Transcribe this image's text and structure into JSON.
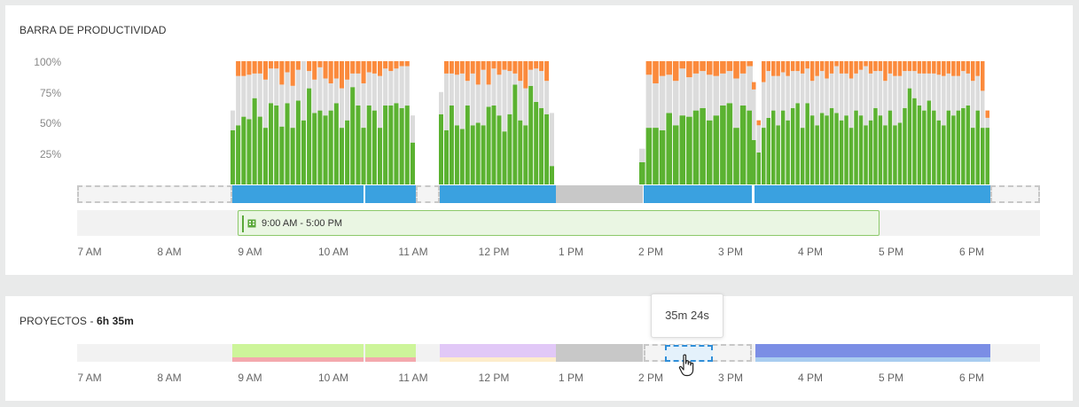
{
  "productivity": {
    "title": "BARRA DE PRODUCTIVIDAD",
    "y_ticks": [
      "100%",
      "75%",
      "50%",
      "25%"
    ],
    "schedule_label": "9:00 AM - 5:00 PM",
    "schedule_icon": "building-icon",
    "colors": {
      "productive": "#5bb231",
      "neutral": "#dcdcdc",
      "unproductive": "#fb8a3c",
      "active": "#3aa1e0",
      "idle": "#c8c8c8"
    }
  },
  "chart_data": {
    "type": "bar",
    "title": "BARRA DE PRODUCTIVIDAD",
    "y_ticks": [
      "100%",
      "75%",
      "50%",
      "25%"
    ],
    "ylim": [
      0,
      100
    ],
    "series_names": [
      "productive",
      "neutral",
      "unproductive"
    ],
    "blocks": [
      {
        "start": "8:56 AM",
        "end": "11:02 AM",
        "bars": [
          [
            44,
            16,
            0
          ],
          [
            48,
            40,
            12
          ],
          [
            55,
            33,
            12
          ],
          [
            53,
            36,
            11
          ],
          [
            70,
            20,
            10
          ],
          [
            55,
            35,
            10
          ],
          [
            46,
            39,
            15
          ],
          [
            66,
            28,
            6
          ],
          [
            64,
            30,
            6
          ],
          [
            47,
            34,
            19
          ],
          [
            66,
            25,
            9
          ],
          [
            46,
            34,
            20
          ],
          [
            68,
            25,
            7
          ],
          [
            52,
            48,
            0
          ],
          [
            78,
            14,
            8
          ],
          [
            58,
            27,
            15
          ],
          [
            60,
            35,
            5
          ],
          [
            56,
            30,
            14
          ],
          [
            60,
            22,
            18
          ],
          [
            66,
            20,
            14
          ],
          [
            46,
            32,
            22
          ],
          [
            52,
            33,
            15
          ],
          [
            79,
            11,
            10
          ],
          [
            64,
            26,
            10
          ],
          [
            46,
            36,
            18
          ],
          [
            64,
            27,
            9
          ],
          [
            60,
            30,
            10
          ],
          [
            46,
            42,
            12
          ],
          [
            64,
            30,
            6
          ],
          [
            64,
            28,
            8
          ],
          [
            66,
            28,
            6
          ],
          [
            62,
            34,
            4
          ],
          [
            64,
            32,
            4
          ],
          [
            34,
            22,
            0
          ]
        ]
      },
      {
        "start": "11:22 AM",
        "end": "12:48 PM",
        "bars": [
          [
            57,
            18,
            0
          ],
          [
            44,
            46,
            10
          ],
          [
            64,
            26,
            10
          ],
          [
            48,
            41,
            11
          ],
          [
            45,
            45,
            10
          ],
          [
            64,
            20,
            16
          ],
          [
            48,
            42,
            10
          ],
          [
            50,
            31,
            19
          ],
          [
            48,
            45,
            7
          ],
          [
            63,
            18,
            19
          ],
          [
            64,
            30,
            6
          ],
          [
            56,
            33,
            11
          ],
          [
            43,
            50,
            7
          ],
          [
            57,
            35,
            8
          ],
          [
            81,
            9,
            10
          ],
          [
            52,
            32,
            16
          ],
          [
            48,
            30,
            22
          ],
          [
            80,
            13,
            7
          ],
          [
            67,
            27,
            6
          ],
          [
            62,
            30,
            8
          ],
          [
            57,
            27,
            16
          ],
          [
            15,
            43,
            0
          ]
        ]
      },
      {
        "start": "1:52 PM",
        "end": "2:56 PM",
        "bars": [
          [
            18,
            11,
            0
          ],
          [
            46,
            43,
            11
          ],
          [
            46,
            36,
            18
          ],
          [
            44,
            44,
            12
          ],
          [
            58,
            31,
            11
          ],
          [
            48,
            36,
            16
          ],
          [
            56,
            38,
            6
          ],
          [
            55,
            32,
            13
          ],
          [
            60,
            30,
            10
          ],
          [
            62,
            30,
            8
          ],
          [
            52,
            37,
            11
          ],
          [
            56,
            32,
            12
          ],
          [
            64,
            26,
            10
          ],
          [
            66,
            26,
            8
          ],
          [
            46,
            40,
            14
          ],
          [
            64,
            26,
            10
          ],
          [
            60,
            36,
            4
          ]
        ]
      },
      {
        "start": "3:15 PM",
        "end": "6:12 PM",
        "bars": [
          [
            36,
            41,
            6
          ],
          [
            26,
            22,
            4
          ],
          [
            46,
            37,
            17
          ],
          [
            54,
            38,
            8
          ],
          [
            60,
            28,
            12
          ],
          [
            48,
            40,
            12
          ],
          [
            60,
            31,
            9
          ],
          [
            52,
            36,
            12
          ],
          [
            62,
            30,
            8
          ],
          [
            66,
            26,
            8
          ],
          [
            46,
            44,
            10
          ],
          [
            66,
            28,
            6
          ],
          [
            56,
            28,
            16
          ],
          [
            48,
            40,
            12
          ],
          [
            58,
            34,
            8
          ],
          [
            56,
            30,
            14
          ],
          [
            62,
            28,
            10
          ],
          [
            58,
            38,
            4
          ],
          [
            52,
            38,
            10
          ],
          [
            56,
            34,
            10
          ],
          [
            46,
            40,
            14
          ],
          [
            60,
            30,
            10
          ],
          [
            56,
            37,
            7
          ],
          [
            48,
            48,
            4
          ],
          [
            52,
            38,
            10
          ],
          [
            62,
            30,
            8
          ],
          [
            56,
            36,
            8
          ],
          [
            48,
            36,
            16
          ],
          [
            60,
            30,
            10
          ],
          [
            48,
            40,
            12
          ],
          [
            50,
            38,
            12
          ],
          [
            62,
            30,
            8
          ],
          [
            78,
            14,
            8
          ],
          [
            70,
            22,
            8
          ],
          [
            64,
            26,
            10
          ],
          [
            60,
            30,
            10
          ],
          [
            68,
            22,
            10
          ],
          [
            60,
            30,
            10
          ],
          [
            52,
            37,
            11
          ],
          [
            48,
            40,
            12
          ],
          [
            60,
            30,
            10
          ],
          [
            56,
            32,
            12
          ],
          [
            60,
            28,
            12
          ],
          [
            62,
            30,
            8
          ],
          [
            64,
            26,
            10
          ],
          [
            46,
            38,
            16
          ],
          [
            60,
            28,
            12
          ],
          [
            46,
            30,
            24
          ],
          [
            46,
            8,
            6
          ]
        ]
      }
    ]
  },
  "projects": {
    "title": "PROYECTOS",
    "separator": " - ",
    "total": "6h 35m",
    "tooltip": "35m 24s",
    "colors": [
      "#cdf59a",
      "#f4a9ad",
      "#e1c8f7",
      "#fdeccb",
      "#c8c8c8",
      "#7b8ee5",
      "#a9cdf0"
    ]
  },
  "x_ticks": [
    "7 AM",
    "8 AM",
    "9 AM",
    "10 AM",
    "11 AM",
    "12 PM",
    "1 PM",
    "2 PM",
    "3 PM",
    "4 PM",
    "5 PM",
    "6 PM"
  ]
}
